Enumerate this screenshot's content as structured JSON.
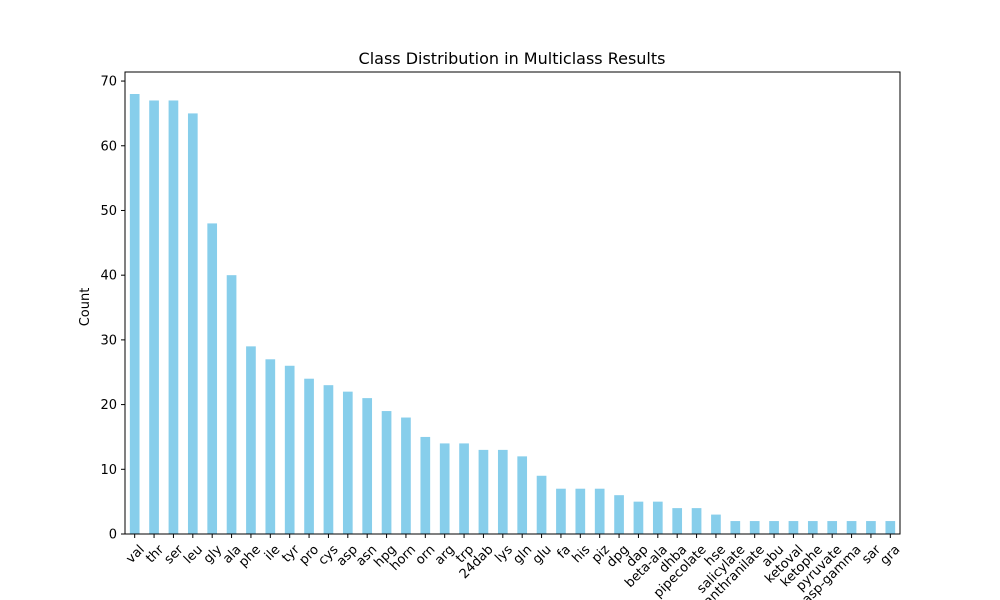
{
  "chart_data": {
    "type": "bar",
    "title": "Class Distribution in Multiclass Results",
    "xlabel": "",
    "ylabel": "Count",
    "ylim": [
      0,
      71.4
    ],
    "yticks": [
      0,
      10,
      20,
      30,
      40,
      50,
      60,
      70
    ],
    "grid": false,
    "bar_color": "#87CEEB",
    "categories": [
      "val",
      "thr",
      "ser",
      "leu",
      "gly",
      "ala",
      "phe",
      "ile",
      "tyr",
      "pro",
      "cys",
      "asp",
      "asn",
      "hpg",
      "horn",
      "orn",
      "arg",
      "trp",
      "24dab",
      "lys",
      "gln",
      "glu",
      "fa",
      "his",
      "piz",
      "dpg",
      "dap",
      "beta-ala",
      "dhba",
      "pipecolate",
      "hse",
      "salicylate",
      "anthranilate",
      "abu",
      "ketoval",
      "ketophe",
      "pyruvate",
      "asp-gamma",
      "sar",
      "gra"
    ],
    "values": [
      68,
      67,
      67,
      65,
      48,
      40,
      29,
      27,
      26,
      24,
      23,
      22,
      21,
      19,
      18,
      15,
      14,
      14,
      13,
      13,
      12,
      9,
      7,
      7,
      7,
      6,
      5,
      5,
      4,
      4,
      3,
      2,
      2,
      2,
      2,
      2,
      2,
      2,
      2,
      2
    ]
  }
}
